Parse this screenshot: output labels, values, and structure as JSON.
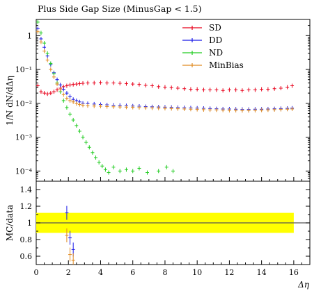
{
  "chart_data": {
    "type": "scatter",
    "title": "Plus Side Gap Size (MinusGap < 1.5)",
    "xlabel": "Δη",
    "ylabel": "1/N dN/dΔη",
    "ratio_ylabel": "MC/data",
    "xlim": [
      0,
      17
    ],
    "ylim": [
      5e-05,
      3
    ],
    "ratio_ylim": [
      0.5,
      1.5
    ],
    "log_y": true,
    "legend_position": "top-right",
    "x_ticks": [
      0,
      2,
      4,
      6,
      8,
      10,
      12,
      14,
      16
    ],
    "x_tick_labels": [
      "0",
      "2",
      "4",
      "6",
      "8",
      "10",
      "12",
      "14",
      "16"
    ],
    "y_ticks": [
      1,
      0.1,
      0.01,
      0.001,
      0.0001
    ],
    "y_tick_labels": [
      "1",
      "10⁻¹",
      "10⁻²",
      "10⁻³",
      "10⁻⁴"
    ],
    "ratio_ticks": [
      0.6,
      0.8,
      1,
      1.2,
      1.4
    ],
    "ratio_tick_labels": [
      "0.6",
      "0.8",
      "1",
      "1.2",
      "1.4"
    ],
    "series": [
      {
        "name": "SD",
        "color": "#e8001a",
        "points": [
          [
            0.1,
            0.033
          ],
          [
            0.3,
            0.022
          ],
          [
            0.5,
            0.02
          ],
          [
            0.7,
            0.019
          ],
          [
            0.9,
            0.02
          ],
          [
            1.1,
            0.022
          ],
          [
            1.3,
            0.025
          ],
          [
            1.5,
            0.028
          ],
          [
            1.7,
            0.031
          ],
          [
            1.9,
            0.033
          ],
          [
            2.1,
            0.035
          ],
          [
            2.3,
            0.036
          ],
          [
            2.5,
            0.037
          ],
          [
            2.7,
            0.038
          ],
          [
            2.9,
            0.039
          ],
          [
            3.2,
            0.04
          ],
          [
            3.6,
            0.04
          ],
          [
            4.0,
            0.041
          ],
          [
            4.4,
            0.04
          ],
          [
            4.8,
            0.04
          ],
          [
            5.2,
            0.039
          ],
          [
            5.6,
            0.038
          ],
          [
            6.0,
            0.037
          ],
          [
            6.4,
            0.036
          ],
          [
            6.8,
            0.034
          ],
          [
            7.2,
            0.033
          ],
          [
            7.6,
            0.031
          ],
          [
            8.0,
            0.03
          ],
          [
            8.4,
            0.029
          ],
          [
            8.8,
            0.028
          ],
          [
            9.2,
            0.027
          ],
          [
            9.6,
            0.026
          ],
          [
            10.0,
            0.026
          ],
          [
            10.4,
            0.025
          ],
          [
            10.8,
            0.025
          ],
          [
            11.2,
            0.025
          ],
          [
            11.6,
            0.024
          ],
          [
            12.0,
            0.025
          ],
          [
            12.4,
            0.025
          ],
          [
            12.8,
            0.024
          ],
          [
            13.2,
            0.025
          ],
          [
            13.6,
            0.025
          ],
          [
            14.0,
            0.026
          ],
          [
            14.4,
            0.026
          ],
          [
            14.8,
            0.027
          ],
          [
            15.2,
            0.028
          ],
          [
            15.6,
            0.03
          ],
          [
            15.9,
            0.033
          ]
        ]
      },
      {
        "name": "DD",
        "color": "#1a1ae8",
        "points": [
          [
            0.1,
            1.6
          ],
          [
            0.3,
            0.8
          ],
          [
            0.5,
            0.45
          ],
          [
            0.7,
            0.25
          ],
          [
            0.9,
            0.14
          ],
          [
            1.1,
            0.08
          ],
          [
            1.3,
            0.05
          ],
          [
            1.5,
            0.035
          ],
          [
            1.7,
            0.026
          ],
          [
            1.9,
            0.02
          ],
          [
            2.1,
            0.016
          ],
          [
            2.3,
            0.013
          ],
          [
            2.5,
            0.012
          ],
          [
            2.7,
            0.011
          ],
          [
            2.9,
            0.01
          ],
          [
            3.2,
            0.0098
          ],
          [
            3.6,
            0.0095
          ],
          [
            4.0,
            0.0092
          ],
          [
            4.4,
            0.009
          ],
          [
            4.8,
            0.0088
          ],
          [
            5.2,
            0.0087
          ],
          [
            5.6,
            0.0085
          ],
          [
            6.0,
            0.0083
          ],
          [
            6.4,
            0.0082
          ],
          [
            6.8,
            0.008
          ],
          [
            7.2,
            0.0079
          ],
          [
            7.6,
            0.0078
          ],
          [
            8.0,
            0.0077
          ],
          [
            8.4,
            0.0076
          ],
          [
            8.8,
            0.0075
          ],
          [
            9.2,
            0.0074
          ],
          [
            9.6,
            0.0073
          ],
          [
            10.0,
            0.0072
          ],
          [
            10.4,
            0.0071
          ],
          [
            10.8,
            0.007
          ],
          [
            11.2,
            0.0069
          ],
          [
            11.6,
            0.0068
          ],
          [
            12.0,
            0.0068
          ],
          [
            12.4,
            0.0067
          ],
          [
            12.8,
            0.0066
          ],
          [
            13.2,
            0.0066
          ],
          [
            13.6,
            0.0067
          ],
          [
            14.0,
            0.0067
          ],
          [
            14.4,
            0.0068
          ],
          [
            14.8,
            0.0069
          ],
          [
            15.2,
            0.007
          ],
          [
            15.6,
            0.0071
          ],
          [
            15.9,
            0.0072
          ]
        ]
      },
      {
        "name": "ND",
        "color": "#22cc22",
        "points": [
          [
            0.1,
            2.5
          ],
          [
            0.3,
            1.2
          ],
          [
            0.5,
            0.6
          ],
          [
            0.7,
            0.3
          ],
          [
            0.9,
            0.15
          ],
          [
            1.1,
            0.075
          ],
          [
            1.3,
            0.04
          ],
          [
            1.5,
            0.022
          ],
          [
            1.7,
            0.012
          ],
          [
            1.9,
            0.0075
          ],
          [
            2.1,
            0.0048
          ],
          [
            2.3,
            0.0032
          ],
          [
            2.5,
            0.0022
          ],
          [
            2.7,
            0.0015
          ],
          [
            2.9,
            0.001
          ],
          [
            3.1,
            0.0007
          ],
          [
            3.3,
            0.0005
          ],
          [
            3.5,
            0.00035
          ],
          [
            3.7,
            0.00025
          ],
          [
            3.9,
            0.00018
          ],
          [
            4.1,
            0.00014
          ],
          [
            4.3,
            0.00011
          ],
          [
            4.5,
            9e-05
          ],
          [
            4.8,
            0.00013
          ],
          [
            5.2,
            0.0001
          ],
          [
            5.6,
            0.00011
          ],
          [
            6.0,
            0.0001
          ],
          [
            6.4,
            0.00012
          ],
          [
            6.9,
            9e-05
          ],
          [
            7.6,
            0.0001
          ],
          [
            8.1,
            0.00013
          ],
          [
            8.5,
            0.0001
          ]
        ]
      },
      {
        "name": "MinBias",
        "color": "#e08a20",
        "points": [
          [
            0.1,
            1.3
          ],
          [
            0.3,
            0.65
          ],
          [
            0.5,
            0.35
          ],
          [
            0.7,
            0.19
          ],
          [
            0.9,
            0.1
          ],
          [
            1.1,
            0.06
          ],
          [
            1.3,
            0.037
          ],
          [
            1.5,
            0.025
          ],
          [
            1.7,
            0.018
          ],
          [
            1.9,
            0.014
          ],
          [
            2.1,
            0.012
          ],
          [
            2.3,
            0.011
          ],
          [
            2.5,
            0.0098
          ],
          [
            2.7,
            0.0092
          ],
          [
            2.9,
            0.0088
          ],
          [
            3.2,
            0.0085
          ],
          [
            3.6,
            0.0083
          ],
          [
            4.0,
            0.0082
          ],
          [
            4.4,
            0.008
          ],
          [
            4.8,
            0.0079
          ],
          [
            5.2,
            0.0078
          ],
          [
            5.6,
            0.0077
          ],
          [
            6.0,
            0.0076
          ],
          [
            6.4,
            0.0075
          ],
          [
            6.8,
            0.0074
          ],
          [
            7.2,
            0.0073
          ],
          [
            7.6,
            0.0072
          ],
          [
            8.0,
            0.0071
          ],
          [
            8.4,
            0.007
          ],
          [
            8.8,
            0.0069
          ],
          [
            9.2,
            0.0068
          ],
          [
            9.6,
            0.0067
          ],
          [
            10.0,
            0.0066
          ],
          [
            10.4,
            0.0065
          ],
          [
            10.8,
            0.0064
          ],
          [
            11.2,
            0.0064
          ],
          [
            11.6,
            0.0063
          ],
          [
            12.0,
            0.0062
          ],
          [
            12.4,
            0.0062
          ],
          [
            12.8,
            0.0061
          ],
          [
            13.2,
            0.0061
          ],
          [
            13.6,
            0.0062
          ],
          [
            14.0,
            0.0063
          ],
          [
            14.4,
            0.0064
          ],
          [
            14.8,
            0.0065
          ],
          [
            15.2,
            0.0066
          ],
          [
            15.6,
            0.0067
          ],
          [
            15.9,
            0.0068
          ]
        ]
      }
    ],
    "ratio_band": {
      "color": "#ffff00",
      "low": 0.88,
      "high": 1.12,
      "xlim": [
        0,
        16
      ]
    },
    "ratio_points": [
      {
        "series": "DD",
        "x": 1.9,
        "y": 1.12
      },
      {
        "series": "DD",
        "x": 2.1,
        "y": 0.82
      },
      {
        "series": "DD",
        "x": 2.3,
        "y": 0.68
      },
      {
        "series": "MinBias",
        "x": 1.9,
        "y": 0.85
      },
      {
        "series": "MinBias",
        "x": 2.1,
        "y": 0.62
      },
      {
        "series": "MinBias",
        "x": 2.3,
        "y": 0.55
      }
    ]
  }
}
